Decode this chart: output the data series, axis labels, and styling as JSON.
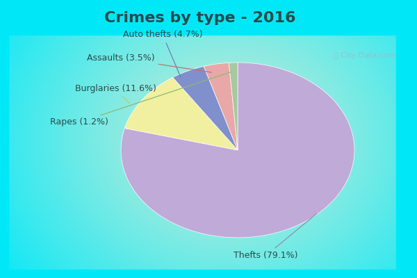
{
  "title": "Crimes by type - 2016",
  "labels": [
    "Thefts",
    "Burglaries",
    "Auto thefts",
    "Assaults",
    "Rapes"
  ],
  "values": [
    79.1,
    11.6,
    4.7,
    3.5,
    1.2
  ],
  "colors": [
    "#c0aad8",
    "#f0f0a0",
    "#8090cc",
    "#e8a8a8",
    "#a8c8a0"
  ],
  "label_texts": [
    "Thefts (79.1%)",
    "Burglaries (11.6%)",
    "Auto thefts (4.7%)",
    "Assaults (3.5%)",
    "Rapes (1.2%)"
  ],
  "background_cyan": "#00e8f8",
  "background_mint": "#c8ecd8",
  "title_fontsize": 16,
  "label_fontsize": 9,
  "title_color": "#2a4a4a",
  "label_color": "#2a4a4a"
}
